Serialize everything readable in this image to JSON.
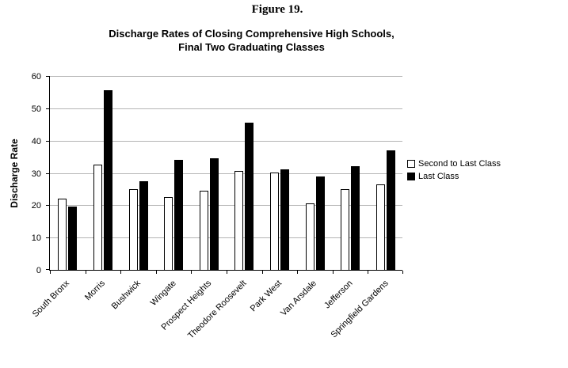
{
  "figure_label": "Figure 19.",
  "chart_data": {
    "type": "bar",
    "title_line1": "Discharge Rates of Closing Comprehensive High Schools,",
    "title_line2": "Final Two Graduating Classes",
    "ylabel": "Discharge Rate",
    "ylim": [
      0,
      60
    ],
    "yticks": [
      0,
      10,
      20,
      30,
      40,
      50,
      60
    ],
    "grid": true,
    "legend_position": "right",
    "categories": [
      "South Bronx",
      "Morris",
      "Bushwick",
      "Wingate",
      "Prospect Heights",
      "Theodore Roosevelt",
      "Park West",
      "Van Arsdale",
      "Jefferson",
      "Springfield Gardens"
    ],
    "series": [
      {
        "name": "Second to Last Class",
        "fill": "#ffffff",
        "border": "#000000",
        "values": [
          22,
          32.5,
          25,
          22.5,
          24.5,
          30.5,
          30,
          20.5,
          25,
          26.5
        ]
      },
      {
        "name": "Last Class",
        "fill": "#000000",
        "border": "#000000",
        "values": [
          19.5,
          55.5,
          27.5,
          34,
          34.5,
          45.5,
          31,
          29,
          32,
          37
        ]
      }
    ]
  }
}
